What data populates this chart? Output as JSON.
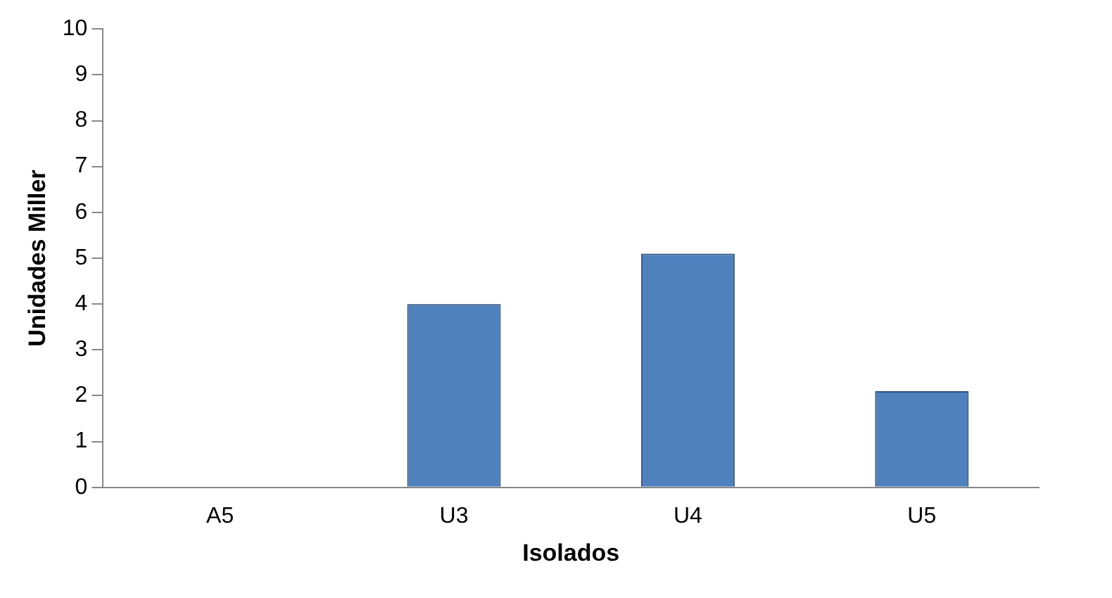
{
  "chart_data": {
    "type": "bar",
    "xlabel": "Isolados",
    "ylabel": "Unidades Miller",
    "categories": [
      "A5",
      "U3",
      "U4",
      "U5"
    ],
    "values": [
      0,
      4.0,
      5.1,
      2.1
    ],
    "color": "#4f81bd",
    "ylim": [
      0,
      10
    ],
    "yticks": [
      0,
      1,
      2,
      3,
      4,
      5,
      6,
      7,
      8,
      9,
      10
    ],
    "grid": false,
    "legend": false
  }
}
